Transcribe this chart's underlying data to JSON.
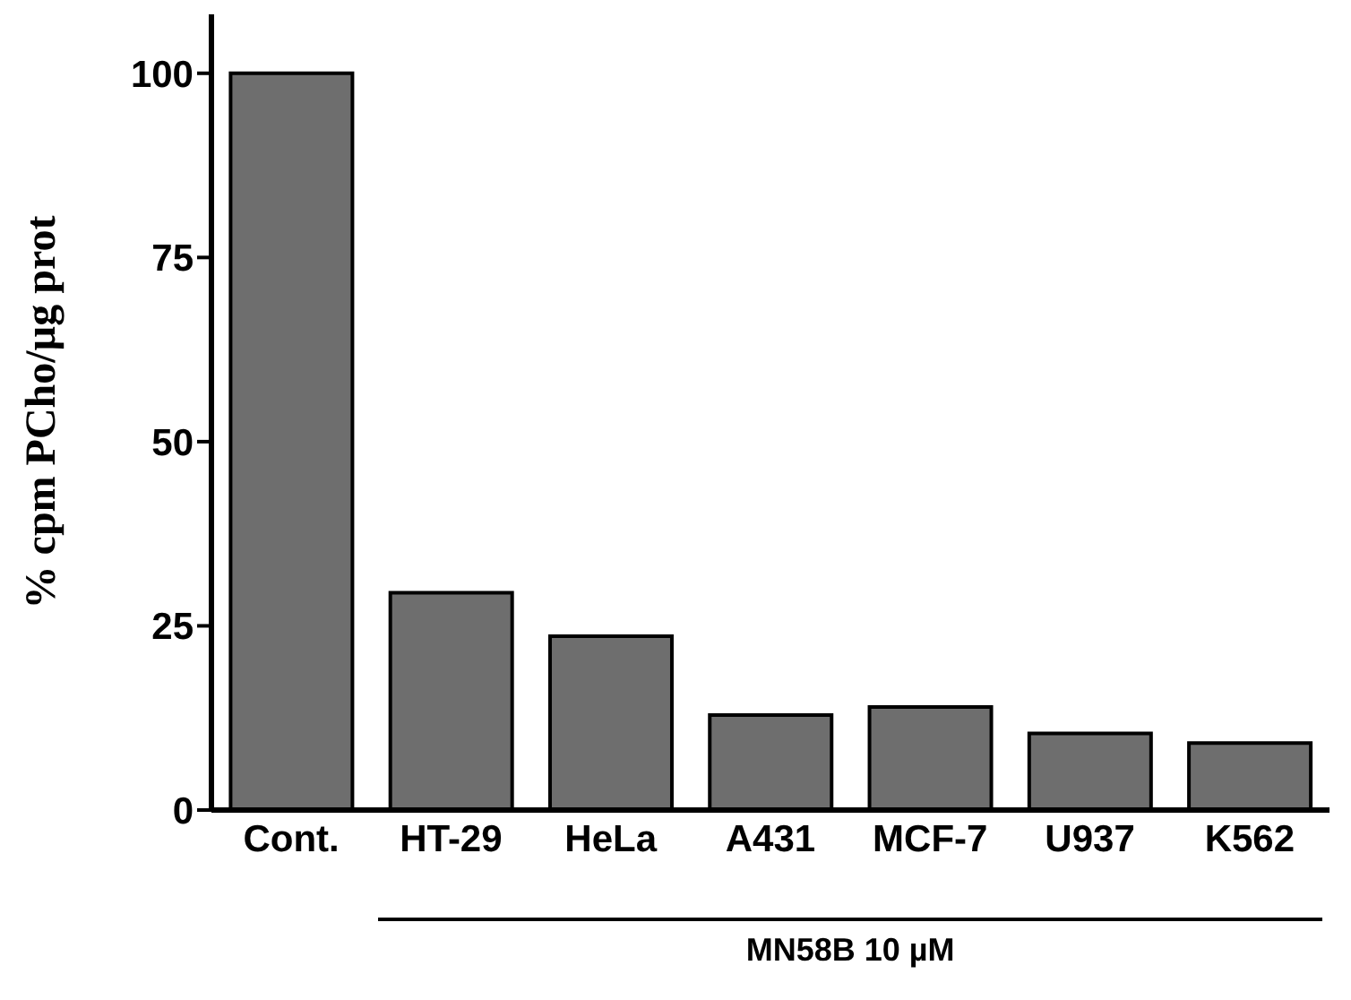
{
  "chart_data": {
    "type": "bar",
    "ylabel": "% cpm PCho/µg prot",
    "categories": [
      "Cont.",
      "HT-29",
      "HeLa",
      "A431",
      "MCF-7",
      "U937",
      "K562"
    ],
    "values": [
      100,
      29.5,
      23.6,
      12.9,
      14,
      10.4,
      9.1
    ],
    "color": "#6e6e6e",
    "ylim": [
      0,
      108
    ],
    "yticks": [
      0,
      25,
      50,
      75,
      100
    ],
    "annotations": [
      "MN58B 10 µM"
    ]
  }
}
